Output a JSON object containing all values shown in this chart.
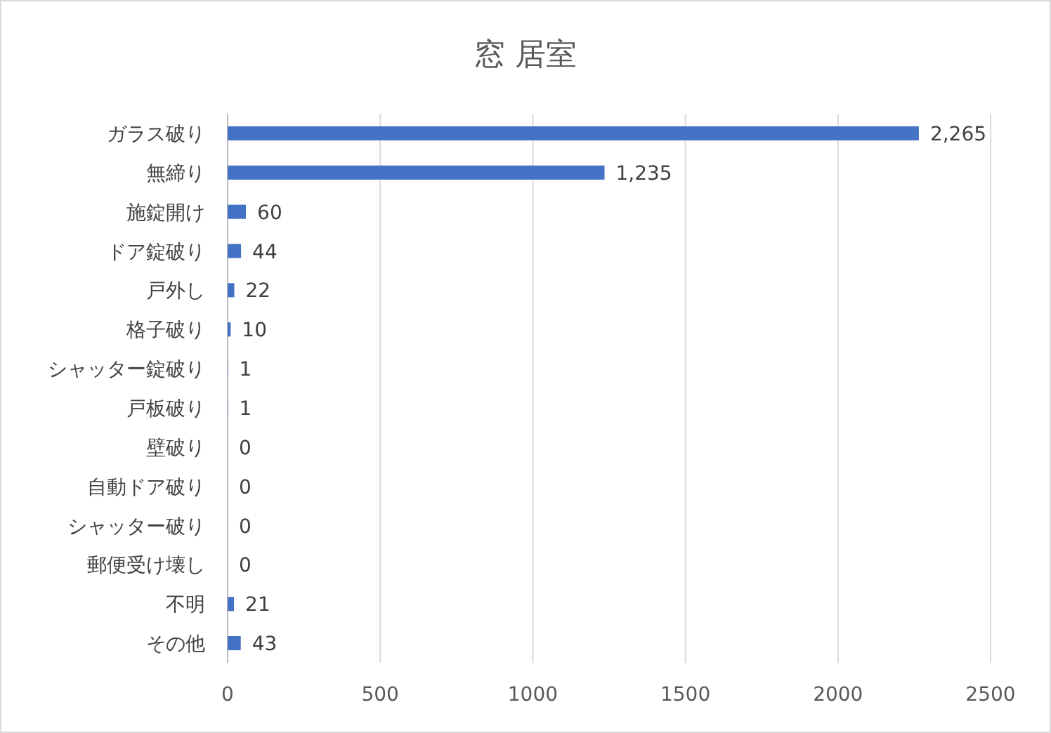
{
  "chart_data": {
    "type": "bar",
    "title": "窓 居室",
    "orientation": "horizontal",
    "categories": [
      "ガラス破り",
      "無締り",
      "施錠開け",
      "ドア錠破り",
      "戸外し",
      "格子破り",
      "シャッター錠破り",
      "戸板破り",
      "壁破り",
      "自動ドア破り",
      "シャッター破り",
      "郵便受け壊し",
      "不明",
      "その他"
    ],
    "values": [
      2265,
      1235,
      60,
      44,
      22,
      10,
      1,
      1,
      0,
      0,
      0,
      0,
      21,
      43
    ],
    "value_labels": [
      "2,265",
      "1,235",
      "60",
      "44",
      "22",
      "10",
      "1",
      "1",
      "0",
      "0",
      "0",
      "0",
      "21",
      "43"
    ],
    "color": "#4472c4",
    "xlim": [
      0,
      2500
    ],
    "xticks": [
      0,
      500,
      1000,
      1500,
      2000,
      2500
    ],
    "grid": "x"
  }
}
